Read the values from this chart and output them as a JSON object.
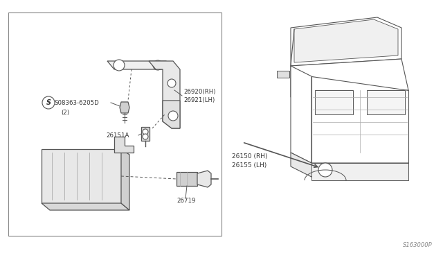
{
  "bg_color": "#ffffff",
  "line_color": "#555555",
  "text_color": "#333333",
  "box_edge_color": "#888888",
  "diagram_ref": "S163000P",
  "label_08363": "S08363-6205D",
  "label_2": "(2)",
  "label_26920": "26920(RH)",
  "label_26921": "26921(LH)",
  "label_26151A": "26151A",
  "label_26719": "26719",
  "label_26150": "26150 (RH)",
  "label_26155": "26155 (LH)"
}
